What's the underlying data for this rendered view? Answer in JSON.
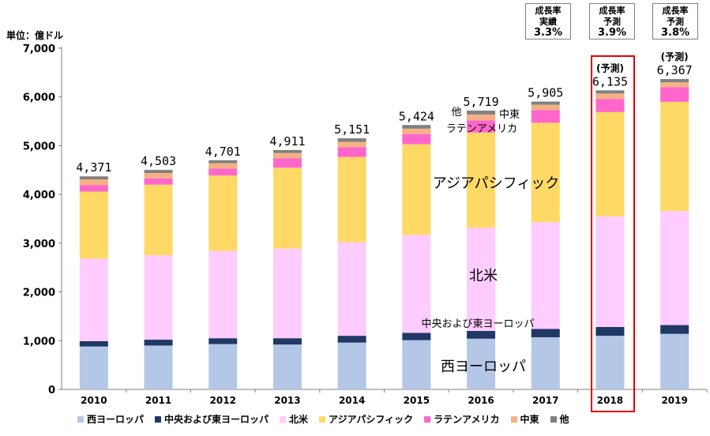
{
  "unit_label": "単位：億ドル",
  "growth_boxes": [
    {
      "l1": "成長率",
      "l2": "実績",
      "val": "3.3%"
    },
    {
      "l1": "成長率",
      "l2": "予測",
      "val": "3.9%"
    },
    {
      "l1": "成長率",
      "l2": "予測",
      "val": "3.8%"
    }
  ],
  "forecast_label": "(予測)",
  "colors": {
    "west_europe": "#b4c7e7",
    "central_east_europe": "#1f3864",
    "north_america": "#ffccff",
    "asia_pacific": "#ffd966",
    "latin_america": "#ff66cc",
    "middle_east": "#f4b183",
    "other": "#808080"
  },
  "chart_data": {
    "type": "bar",
    "stacked": true,
    "categories": [
      "2010",
      "2011",
      "2012",
      "2013",
      "2014",
      "2015",
      "2016",
      "2017",
      "2018",
      "2019"
    ],
    "ylim": [
      0,
      7000
    ],
    "yticks": [
      "0",
      "1,000",
      "2,000",
      "3,000",
      "4,000",
      "5,000",
      "6,000",
      "7,000"
    ],
    "totals": [
      "4,371",
      "4,503",
      "4,701",
      "4,911",
      "5,151",
      "5,424",
      "5,719",
      "5,905",
      "6,135",
      "6,367"
    ],
    "series": [
      {
        "name": "西ヨーロッパ",
        "values": [
          880,
          900,
          930,
          920,
          960,
          1010,
          1040,
          1070,
          1100,
          1140
        ]
      },
      {
        "name": "中央および東ヨーロッパ",
        "values": [
          110,
          120,
          120,
          130,
          140,
          150,
          160,
          170,
          180,
          180
        ]
      },
      {
        "name": "北米",
        "values": [
          1690,
          1730,
          1790,
          1840,
          1920,
          2010,
          2120,
          2190,
          2270,
          2340
        ]
      },
      {
        "name": "アジアパシフィック",
        "values": [
          1380,
          1450,
          1550,
          1660,
          1750,
          1860,
          1950,
          2040,
          2140,
          2240
        ]
      },
      {
        "name": "ラテンアメリカ",
        "values": [
          130,
          130,
          140,
          190,
          200,
          210,
          250,
          260,
          270,
          300
        ]
      },
      {
        "name": "中東",
        "values": [
          120,
          110,
          110,
          110,
          110,
          110,
          120,
          110,
          110,
          100
        ]
      },
      {
        "name": "他",
        "values": [
          61,
          63,
          61,
          61,
          71,
          74,
          79,
          65,
          65,
          67
        ]
      }
    ],
    "annotations": {
      "west_europe": "西ヨーロッパ",
      "central_east_europe": "中央および東ヨーロッパ",
      "north_america": "北米",
      "asia_pacific": "アジアパシフィック",
      "latin_america": "ラテンアメリカ",
      "middle_east": "中東",
      "other": "他"
    },
    "legend": [
      "西ヨーロッパ",
      "中央および東ヨーロッパ",
      "北米",
      "アジアパシフィック",
      "ラテンアメリカ",
      "中東",
      "他"
    ],
    "grid": false,
    "legend_position": "bottom"
  }
}
